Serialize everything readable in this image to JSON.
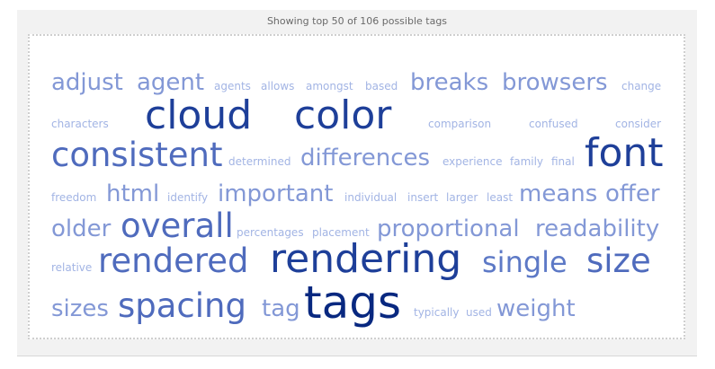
{
  "header": {
    "text": "Showing top 50 of 106 possible tags"
  },
  "colors": {
    "smallest": "#9aaee0",
    "largest": "#0d2c84"
  },
  "tags": [
    {
      "text": "adjust",
      "level": 3
    },
    {
      "text": "agent",
      "level": 3
    },
    {
      "text": "agents",
      "level": 1
    },
    {
      "text": "allows",
      "level": 1
    },
    {
      "text": "amongst",
      "level": 1
    },
    {
      "text": "based",
      "level": 1
    },
    {
      "text": "breaks",
      "level": 3
    },
    {
      "text": "browsers",
      "level": 3
    },
    {
      "text": "change",
      "level": 1
    },
    {
      "text": "characters",
      "level": 1
    },
    {
      "text": "cloud",
      "level": 6
    },
    {
      "text": "color",
      "level": 6
    },
    {
      "text": "comparison",
      "level": 1
    },
    {
      "text": "confused",
      "level": 1
    },
    {
      "text": "consider",
      "level": 1
    },
    {
      "text": "consistent",
      "level": 5
    },
    {
      "text": "determined",
      "level": 1
    },
    {
      "text": "differences",
      "level": 3
    },
    {
      "text": "experience",
      "level": 1
    },
    {
      "text": "family",
      "level": 1
    },
    {
      "text": "final",
      "level": 1
    },
    {
      "text": "font",
      "level": 6
    },
    {
      "text": "freedom",
      "level": 1
    },
    {
      "text": "html",
      "level": 3
    },
    {
      "text": "identify",
      "level": 1
    },
    {
      "text": "important",
      "level": 3
    },
    {
      "text": "individual",
      "level": 1
    },
    {
      "text": "insert",
      "level": 1
    },
    {
      "text": "larger",
      "level": 1
    },
    {
      "text": "least",
      "level": 1
    },
    {
      "text": "means",
      "level": 3
    },
    {
      "text": "offer",
      "level": 3
    },
    {
      "text": "older",
      "level": 3
    },
    {
      "text": "overall",
      "level": 5
    },
    {
      "text": "percentages",
      "level": 1
    },
    {
      "text": "placement",
      "level": 1
    },
    {
      "text": "proportional",
      "level": 3
    },
    {
      "text": "readability",
      "level": 3
    },
    {
      "text": "relative",
      "level": 1
    },
    {
      "text": "rendered",
      "level": 5
    },
    {
      "text": "rendering",
      "level": 6
    },
    {
      "text": "single",
      "level": 4
    },
    {
      "text": "size",
      "level": 5
    },
    {
      "text": "sizes",
      "level": 3
    },
    {
      "text": "spacing",
      "level": 5
    },
    {
      "text": "tag",
      "level": 3
    },
    {
      "text": "tags",
      "level": 7
    },
    {
      "text": "typically",
      "level": 1
    },
    {
      "text": "used",
      "level": 1
    },
    {
      "text": "weight",
      "level": 3
    }
  ]
}
